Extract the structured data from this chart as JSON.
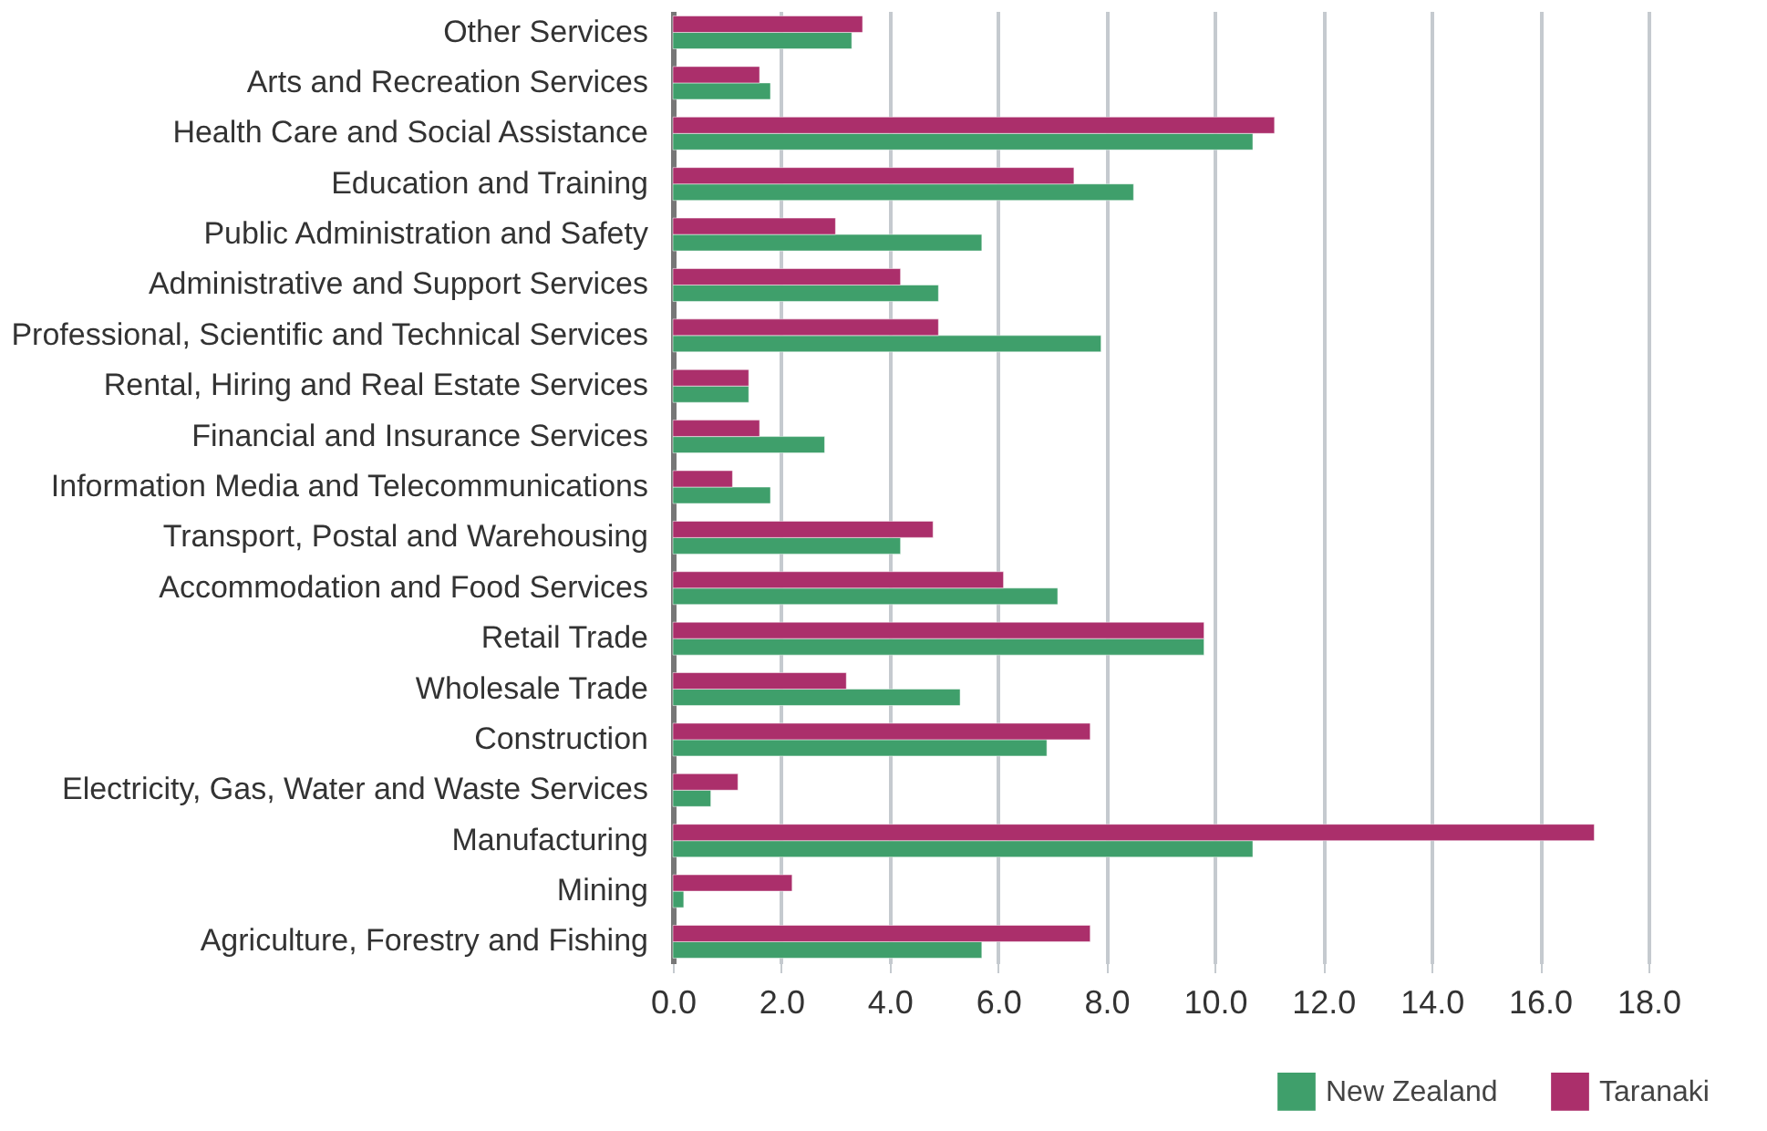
{
  "chart_data": {
    "type": "bar",
    "orientation": "horizontal",
    "categories": [
      "Other Services",
      "Arts and Recreation Services",
      "Health Care and Social Assistance",
      "Education and Training",
      "Public Administration and Safety",
      "Administrative and Support Services",
      "Professional, Scientific and Technical Services",
      "Rental, Hiring and Real Estate Services",
      "Financial and Insurance Services",
      "Information Media and Telecommunications",
      "Transport, Postal and Warehousing",
      "Accommodation and Food Services",
      "Retail Trade",
      "Wholesale Trade",
      "Construction",
      "Electricity, Gas, Water and Waste Services",
      "Manufacturing",
      "Mining",
      "Agriculture, Forestry and Fishing"
    ],
    "series": [
      {
        "name": "New Zealand",
        "color": "#3f9f6b",
        "values": [
          3.3,
          1.8,
          10.7,
          8.5,
          5.7,
          4.9,
          7.9,
          1.4,
          2.8,
          1.8,
          4.2,
          7.1,
          9.8,
          5.3,
          6.9,
          0.7,
          10.7,
          0.2,
          5.7
        ]
      },
      {
        "name": "Taranaki",
        "color": "#ab2f6b",
        "values": [
          3.5,
          1.6,
          11.1,
          7.4,
          3.0,
          4.2,
          4.9,
          1.4,
          1.6,
          1.1,
          4.8,
          6.1,
          9.8,
          3.2,
          7.7,
          1.2,
          17.0,
          2.2,
          7.7
        ]
      }
    ],
    "xlim": [
      0,
      18
    ],
    "xticks": [
      {
        "value": 0,
        "label": "0.0"
      },
      {
        "value": 2,
        "label": "2.0"
      },
      {
        "value": 4,
        "label": "4.0"
      },
      {
        "value": 6,
        "label": "6.0"
      },
      {
        "value": 8,
        "label": "8.0"
      },
      {
        "value": 10,
        "label": "10.0"
      },
      {
        "value": 12,
        "label": "12.0"
      },
      {
        "value": 14,
        "label": "14.0"
      },
      {
        "value": 16,
        "label": "16.0"
      },
      {
        "value": 18,
        "label": "18.0"
      }
    ],
    "grid": "x",
    "legend": "bottom right"
  }
}
